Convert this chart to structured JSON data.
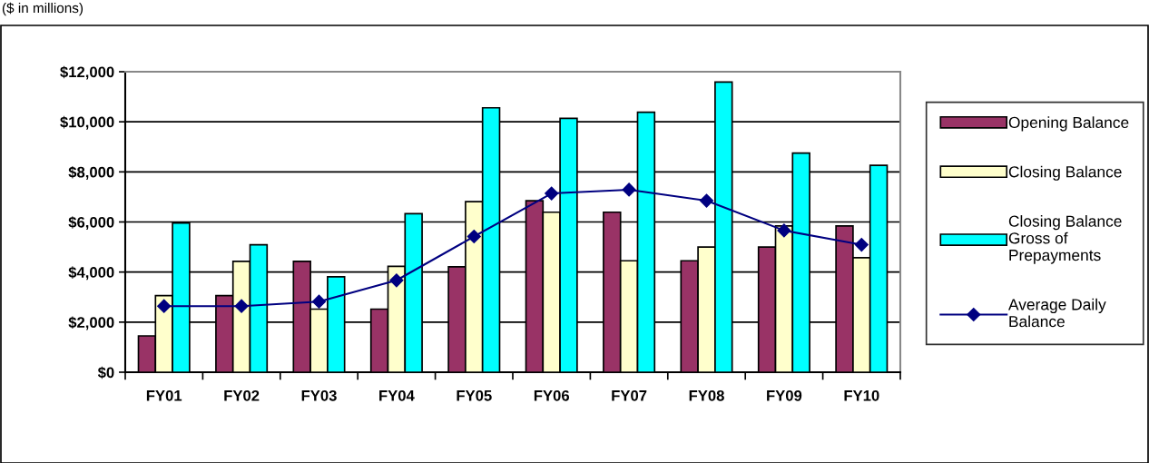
{
  "chart_data": {
    "type": "bar",
    "categories": [
      "FY01",
      "FY02",
      "FY03",
      "FY04",
      "FY05",
      "FY06",
      "FY07",
      "FY08",
      "FY09",
      "FY10"
    ],
    "series": [
      {
        "name": "Opening Balance",
        "color": "#993366",
        "values": [
          1450,
          3060,
          4430,
          2520,
          4210,
          6850,
          6390,
          4450,
          5000,
          5840
        ]
      },
      {
        "name": "Closing Balance",
        "color": "#ffffcc",
        "values": [
          3060,
          4430,
          2520,
          4230,
          6810,
          6390,
          4450,
          5000,
          5840,
          4570
        ]
      },
      {
        "name": "Closing Balance\nGross of\nPrepayments",
        "color": "#00ffff",
        "values": [
          5960,
          5090,
          3810,
          6330,
          10560,
          10140,
          10380,
          11590,
          8750,
          8260
        ]
      },
      {
        "name": "Average Daily\nBalance",
        "type": "line",
        "color": "#000080",
        "marker": "diamond",
        "line_style": "solid",
        "values": [
          2640,
          2640,
          2820,
          3670,
          5420,
          7140,
          7290,
          6850,
          5660,
          5090
        ]
      }
    ],
    "ylim": [
      0,
      12000
    ],
    "yticks": [
      {
        "value": 0,
        "label": "$0"
      },
      {
        "value": 2000,
        "label": "$2,000"
      },
      {
        "value": 4000,
        "label": "$4,000"
      },
      {
        "value": 6000,
        "label": "$6,000"
      },
      {
        "value": 8000,
        "label": "$8,000"
      },
      {
        "value": 10000,
        "label": "$10,000"
      },
      {
        "value": 12000,
        "label": "$12,000"
      }
    ],
    "grid": "y",
    "legend": "right",
    "annotations": [
      "($ in millions)"
    ]
  }
}
